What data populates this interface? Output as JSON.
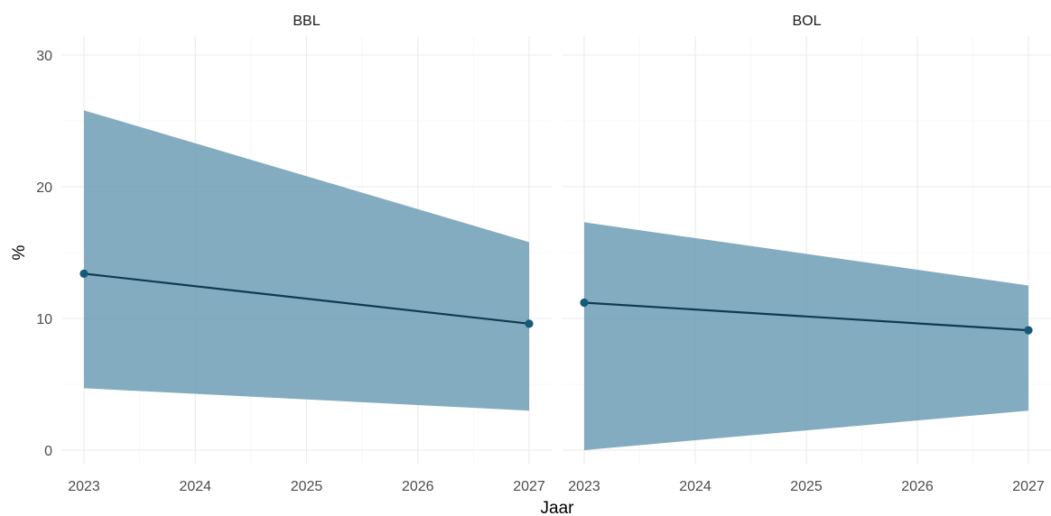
{
  "chart_data": {
    "type": "line",
    "facet_layout": "1 row, 2 panels",
    "xlabel": "Jaar",
    "ylabel": "%",
    "x_ticks": [
      2023,
      2024,
      2025,
      2026,
      2027
    ],
    "y_ticks": [
      0,
      10,
      20,
      30
    ],
    "xlim": [
      2023,
      2027
    ],
    "ylim": [
      0,
      30
    ],
    "grid": true,
    "colors": {
      "line": "#0d3b52",
      "point": "#165a78",
      "ribbon": "#6f9db5"
    },
    "panels": [
      {
        "label": "BBL",
        "x": [
          2023,
          2027
        ],
        "y": [
          13.4,
          9.6
        ],
        "lower": [
          4.7,
          3.0
        ],
        "upper": [
          25.8,
          15.8
        ]
      },
      {
        "label": "BOL",
        "x": [
          2023,
          2027
        ],
        "y": [
          11.2,
          9.1
        ],
        "lower": [
          0.0,
          3.0
        ],
        "upper": [
          17.3,
          12.5
        ]
      }
    ]
  }
}
